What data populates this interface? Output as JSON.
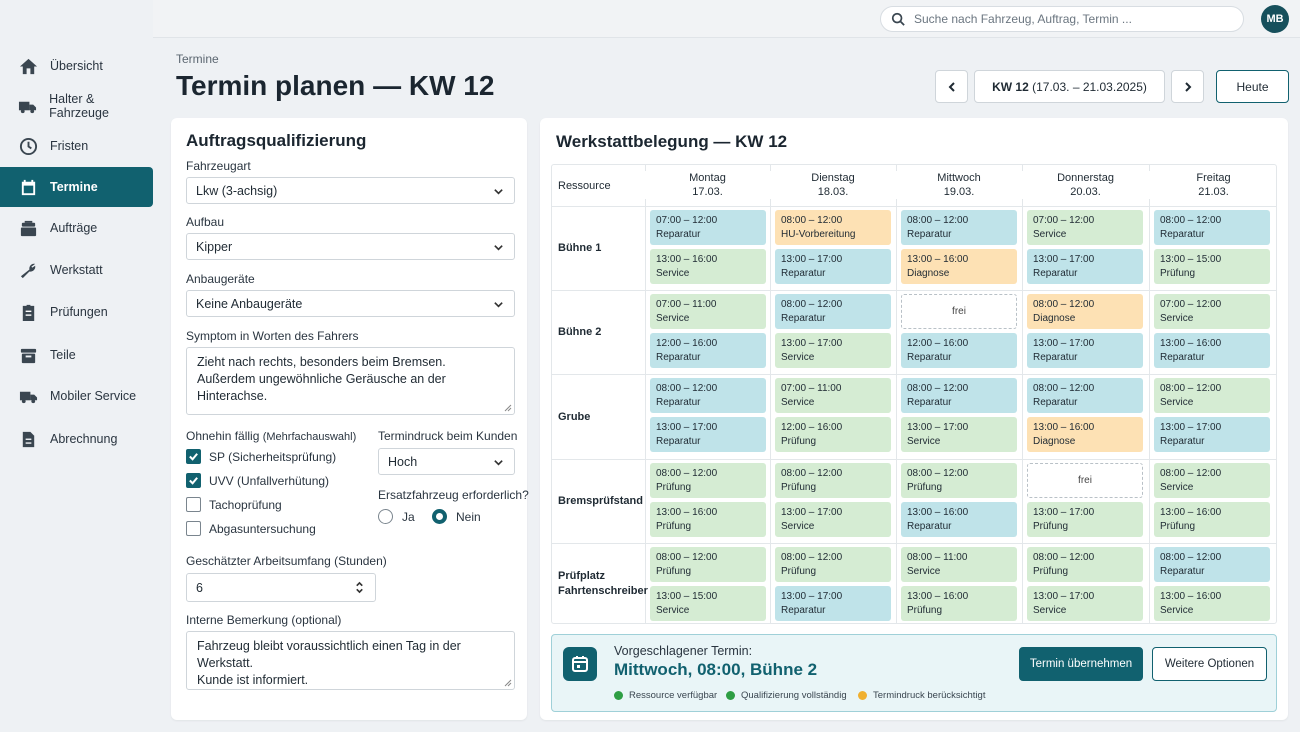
{
  "nav": [
    {
      "label": "Übersicht",
      "icon": "home-icon"
    },
    {
      "label": "Halter & Fahrzeuge",
      "icon": "truck-icon"
    },
    {
      "label": "Fristen",
      "icon": "clock-icon"
    },
    {
      "label": "Termine",
      "icon": "calendar-icon"
    },
    {
      "label": "Aufträge",
      "icon": "stack-icon"
    },
    {
      "label": "Werkstatt",
      "icon": "wrench-icon"
    },
    {
      "label": "Prüfungen",
      "icon": "clipboard-icon"
    },
    {
      "label": "Teile",
      "icon": "box-icon"
    },
    {
      "label": "Mobiler Service",
      "icon": "truck-icon"
    },
    {
      "label": "Abrechnung",
      "icon": "document-icon"
    }
  ],
  "active_nav": "Termine",
  "search": {
    "placeholder": "Suche nach Fahrzeug, Auftrag, Termin ..."
  },
  "user": {
    "initials": "MB"
  },
  "breadcrumb": "Termine",
  "page_title": "Termin planen — KW 12",
  "week": {
    "label": "KW 12",
    "range": "(17.03. – 21.03.2025)",
    "today_label": "Heute"
  },
  "form": {
    "title": "Auftragsqualifizierung",
    "vehicle_type": {
      "label": "Fahrzeugart",
      "value": "Lkw (3-achsig)"
    },
    "body": {
      "label": "Aufbau",
      "value": "Kipper"
    },
    "attachments": {
      "label": "Anbaugeräte",
      "value": "Keine Anbaugeräte"
    },
    "symptom": {
      "label": "Symptom in Worten des Fahrers",
      "lines": [
        "Zieht nach rechts, besonders beim Bremsen.",
        "Außerdem ungewöhnliche Geräusche an der",
        "Hinterachse."
      ]
    },
    "due": {
      "label": "Ohnehin fällig",
      "hint": "(Mehrfachauswahl)",
      "items": [
        {
          "label": "SP (Sicherheitsprüfung)",
          "checked": true
        },
        {
          "label": "UVV (Unfallverhütung)",
          "checked": true
        },
        {
          "label": "Tachoprüfung",
          "checked": false
        },
        {
          "label": "Abgasuntersuchung",
          "checked": false
        }
      ]
    },
    "pressure": {
      "label": "Termindruck beim Kunden",
      "value": "Hoch"
    },
    "replacement": {
      "label": "Ersatzfahrzeug erforderlich?",
      "yes": "Ja",
      "no": "Nein",
      "selected": "Nein"
    },
    "effort": {
      "label": "Geschätzter Arbeitsumfang (Stunden)",
      "value": "6"
    },
    "remark": {
      "label": "Interne Bemerkung (optional)",
      "lines": [
        "Fahrzeug bleibt voraussichtlich einen Tag in der Werkstatt.",
        "Kunde ist informiert."
      ]
    }
  },
  "schedule": {
    "title": "Werkstattbelegung — KW 12",
    "resource_header": "Ressource",
    "days": [
      {
        "name": "Montag",
        "date": "17.03."
      },
      {
        "name": "Dienstag",
        "date": "18.03."
      },
      {
        "name": "Mittwoch",
        "date": "19.03."
      },
      {
        "name": "Donnerstag",
        "date": "20.03."
      },
      {
        "name": "Freitag",
        "date": "21.03."
      }
    ],
    "rows": [
      {
        "resource": "Bühne 1",
        "cells": [
          [
            [
              "07:00 – 12:00",
              "Reparatur"
            ],
            [
              "13:00 – 16:00",
              "Service"
            ]
          ],
          [
            [
              "08:00 – 12:00",
              "HU-Vorbereitung"
            ],
            [
              "13:00 – 17:00",
              "Reparatur"
            ]
          ],
          [
            [
              "08:00 – 12:00",
              "Reparatur"
            ],
            [
              "13:00 – 16:00",
              "Diagnose"
            ]
          ],
          [
            [
              "07:00 – 12:00",
              "Service"
            ],
            [
              "13:00 – 17:00",
              "Reparatur"
            ]
          ],
          [
            [
              "08:00 – 12:00",
              "Reparatur"
            ],
            [
              "13:00 – 15:00",
              "Prüfung"
            ]
          ]
        ]
      },
      {
        "resource": "Bühne 2",
        "cells": [
          [
            [
              "07:00 – 11:00",
              "Service"
            ],
            [
              "12:00 – 16:00",
              "Reparatur"
            ]
          ],
          [
            [
              "08:00 – 12:00",
              "Reparatur"
            ],
            [
              "13:00 – 17:00",
              "Service"
            ]
          ],
          [
            [
              "",
              "frei"
            ],
            [
              "12:00 – 16:00",
              "Reparatur"
            ]
          ],
          [
            [
              "08:00 – 12:00",
              "Diagnose"
            ],
            [
              "13:00 – 17:00",
              "Reparatur"
            ]
          ],
          [
            [
              "07:00 – 12:00",
              "Service"
            ],
            [
              "13:00 – 16:00",
              "Reparatur"
            ]
          ]
        ]
      },
      {
        "resource": "Grube",
        "cells": [
          [
            [
              "08:00 – 12:00",
              "Reparatur"
            ],
            [
              "13:00 – 17:00",
              "Reparatur"
            ]
          ],
          [
            [
              "07:00 – 11:00",
              "Service"
            ],
            [
              "12:00 – 16:00",
              "Prüfung"
            ]
          ],
          [
            [
              "08:00 – 12:00",
              "Reparatur"
            ],
            [
              "13:00 – 17:00",
              "Service"
            ]
          ],
          [
            [
              "08:00 – 12:00",
              "Reparatur"
            ],
            [
              "13:00 – 16:00",
              "Diagnose"
            ]
          ],
          [
            [
              "08:00 – 12:00",
              "Service"
            ],
            [
              "13:00 – 17:00",
              "Reparatur"
            ]
          ]
        ]
      },
      {
        "resource": "Bremsprüfstand",
        "cells": [
          [
            [
              "08:00 – 12:00",
              "Prüfung"
            ],
            [
              "13:00 – 16:00",
              "Prüfung"
            ]
          ],
          [
            [
              "08:00 – 12:00",
              "Prüfung"
            ],
            [
              "13:00 – 17:00",
              "Service"
            ]
          ],
          [
            [
              "08:00 – 12:00",
              "Prüfung"
            ],
            [
              "13:00 – 16:00",
              "Reparatur"
            ]
          ],
          [
            [
              "",
              "frei"
            ],
            [
              "13:00 – 17:00",
              "Prüfung"
            ]
          ],
          [
            [
              "08:00 – 12:00",
              "Service"
            ],
            [
              "13:00 – 16:00",
              "Prüfung"
            ]
          ]
        ]
      },
      {
        "resource": "Prüfplatz Fahrtenschreiber",
        "cells": [
          [
            [
              "08:00 – 12:00",
              "Prüfung"
            ],
            [
              "13:00 – 15:00",
              "Service"
            ]
          ],
          [
            [
              "08:00 – 12:00",
              "Prüfung"
            ],
            [
              "13:00 – 17:00",
              "Reparatur"
            ]
          ],
          [
            [
              "08:00 – 11:00",
              "Service"
            ],
            [
              "13:00 – 16:00",
              "Prüfung"
            ]
          ],
          [
            [
              "08:00 – 12:00",
              "Prüfung"
            ],
            [
              "13:00 – 17:00",
              "Service"
            ]
          ],
          [
            [
              "08:00 – 12:00",
              "Reparatur"
            ],
            [
              "13:00 – 16:00",
              "Service"
            ]
          ]
        ]
      }
    ]
  },
  "suggestion": {
    "label": "Vorgeschlagener Termin:",
    "value": "Mittwoch, 08:00, Bühne 2",
    "accept": "Termin übernehmen",
    "more": "Weitere Optionen",
    "legend": [
      {
        "label": "Ressource verfügbar",
        "color": "#2e9e44"
      },
      {
        "label": "Qualifizierung vollständig",
        "color": "#2e9e44"
      },
      {
        "label": "Termindruck berücksichtigt",
        "color": "#f0b030"
      }
    ]
  },
  "colors": {
    "accent": "#11616f",
    "service": "#d5ecd3",
    "repair": "#bfe3e9",
    "diagnosis": "#fde1b4"
  }
}
